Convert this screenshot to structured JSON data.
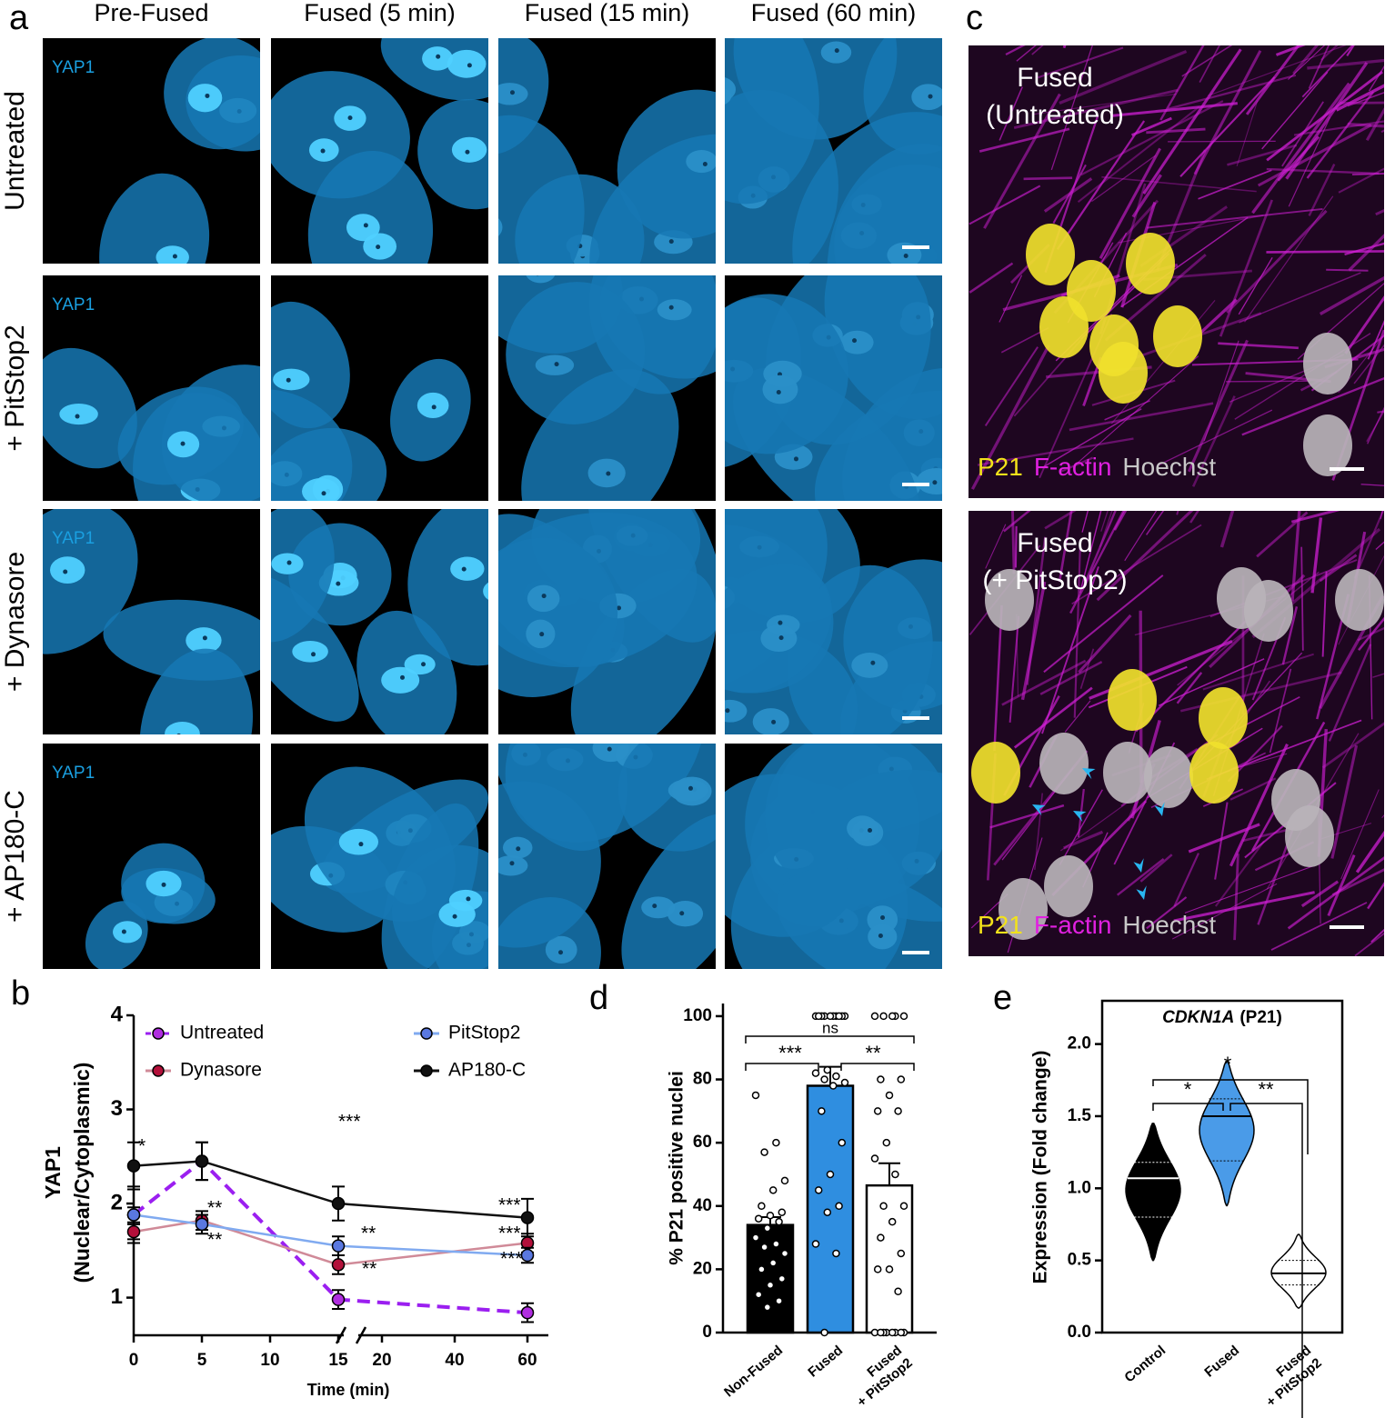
{
  "panel_a": {
    "label": "a",
    "columns": [
      "Pre-Fused",
      "Fused (5 min)",
      "Fused (15 min)",
      "Fused (60 min)"
    ],
    "rows": [
      "Untreated",
      "+ PitStop2",
      "+ Dynasore",
      "+ AP180-C"
    ],
    "stain": "YAP1"
  },
  "panel_c": {
    "label": "c",
    "images": [
      {
        "title": [
          "Fused",
          "(Untreated)"
        ]
      },
      {
        "title": [
          "Fused",
          "(+ PitStop2)"
        ]
      }
    ],
    "channels": [
      {
        "name": "P21",
        "color": "#f2e21a"
      },
      {
        "name": "F-actin",
        "color": "#e020e0"
      },
      {
        "name": "Hoechst",
        "color": "#c8c8c8"
      }
    ]
  },
  "chart_data": [
    {
      "type": "line",
      "panel_label": "b",
      "x": [
        0,
        5,
        15,
        60
      ],
      "xsegments": [
        [
          0,
          15
        ],
        [
          15,
          60
        ]
      ],
      "xticks": [
        0,
        5,
        10,
        15,
        20,
        40,
        60
      ],
      "ylim": [
        0.6,
        4
      ],
      "yticks": [
        1,
        2,
        3,
        4
      ],
      "xlabel": "Time (min)",
      "ylabel": [
        "YAP1",
        "(Nuclear/Cytoplasmic)"
      ],
      "series": [
        {
          "name": "Untreated",
          "color": "#b02ee0",
          "line_color": "#9b1ff0",
          "dashed": true,
          "values": [
            1.88,
            2.45,
            0.98,
            0.84
          ],
          "errors": [
            0.3,
            0.2,
            0.1,
            0.1
          ]
        },
        {
          "name": "Dynasore",
          "color": "#b3103a",
          "line_color": "#d08a98",
          "dashed": false,
          "values": [
            1.7,
            1.82,
            1.35,
            1.58
          ],
          "errors": [
            0.08,
            0.1,
            0.1,
            0.1
          ]
        },
        {
          "name": "PitStop2",
          "color": "#5a78e0",
          "line_color": "#80aaf0",
          "dashed": false,
          "values": [
            1.88,
            1.78,
            1.55,
            1.45
          ],
          "errors": [
            0.08,
            0.1,
            0.1,
            0.08
          ]
        },
        {
          "name": "AP180-C",
          "color": "#111111",
          "line_color": "#111111",
          "dashed": false,
          "values": [
            2.4,
            2.45,
            2.0,
            1.85
          ],
          "errors": [
            0.25,
            0.2,
            0.18,
            0.2
          ]
        }
      ],
      "annotations": [
        "*",
        "**",
        "**",
        "***",
        "**",
        "**",
        "***",
        "***",
        "***"
      ]
    },
    {
      "type": "bar",
      "panel_label": "d",
      "categories": [
        "Non-Fused",
        "Fused",
        "Fused\n+ PitStop2"
      ],
      "values": [
        34,
        78,
        46.5
      ],
      "errors": [
        2.5,
        6,
        7
      ],
      "colors": [
        "#000000",
        "#2f8ee0",
        "#ffffff"
      ],
      "points": [
        [
          75,
          60,
          57,
          48,
          45,
          40,
          38,
          37,
          36,
          35,
          33,
          30,
          28,
          27,
          25,
          22,
          20,
          17,
          15,
          12,
          10,
          8
        ],
        [
          100,
          100,
          100,
          100,
          100,
          100,
          100,
          100,
          100,
          100,
          83,
          82,
          81,
          80,
          79,
          78,
          70,
          60,
          50,
          45,
          40,
          38,
          28,
          25,
          0
        ],
        [
          100,
          100,
          100,
          100,
          100,
          80,
          80,
          75,
          70,
          70,
          60,
          55,
          50,
          40,
          40,
          35,
          30,
          25,
          20,
          20,
          13,
          0,
          0,
          0,
          0,
          0,
          0,
          0,
          0
        ]
      ],
      "ylim": [
        0,
        104
      ],
      "yticks": [
        0,
        20,
        40,
        60,
        80,
        100
      ],
      "ylabel": "% P21 positive nuclei",
      "annotations": [
        "ns",
        "***",
        "**"
      ]
    },
    {
      "type": "violin",
      "panel_label": "e",
      "title": {
        "gene": "CDKN1A",
        "protein": "(P21)"
      },
      "categories": [
        "Control",
        "Fused",
        "Fused\n+ PitStop2"
      ],
      "colors": [
        "#000000",
        "#4a9be8",
        "#ffffff"
      ],
      "medians": [
        1.07,
        1.5,
        0.41
      ],
      "quartiles": [
        [
          0.8,
          1.18
        ],
        [
          1.19,
          1.62
        ],
        [
          0.33,
          0.5
        ]
      ],
      "ranges": [
        [
          0.5,
          1.45
        ],
        [
          0.88,
          1.88
        ],
        [
          0.17,
          0.68
        ]
      ],
      "ylim": [
        0,
        2.3
      ],
      "yticks": [
        {
          "value": 0,
          "label": "0.0"
        },
        {
          "value": 0.5,
          "label": "0.5"
        },
        {
          "value": 1,
          "label": "1.0"
        },
        {
          "value": 1.5,
          "label": "1.5"
        },
        {
          "value": 2,
          "label": "2.0"
        }
      ],
      "ylabel": "Expression (Fold change)",
      "annotations": [
        "*",
        "*",
        "**"
      ]
    }
  ]
}
